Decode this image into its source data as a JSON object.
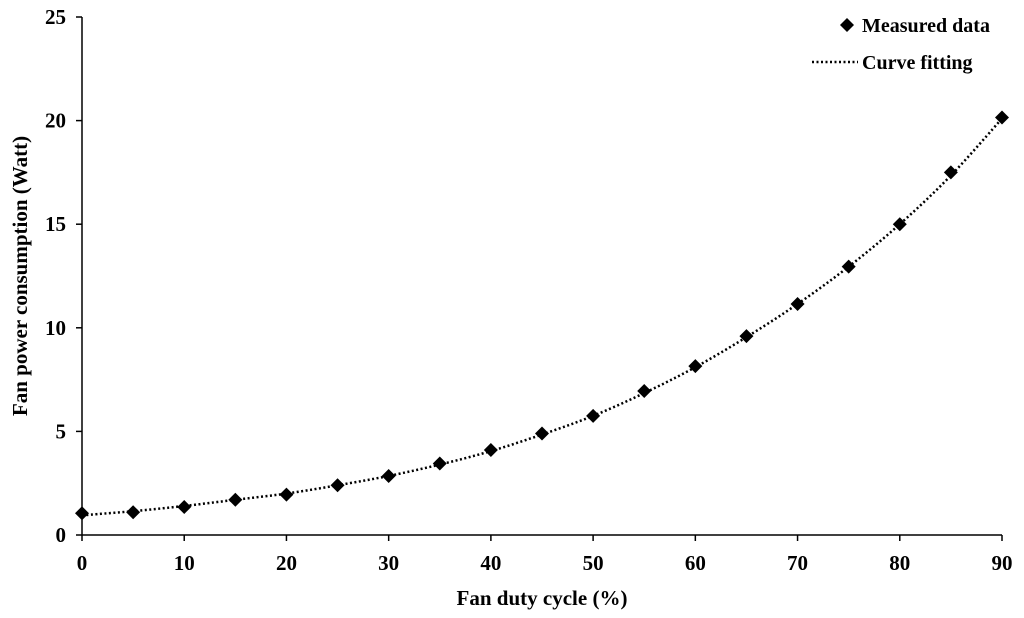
{
  "chart_data": {
    "type": "scatter",
    "xlabel": "Fan duty cycle (%)",
    "ylabel": "Fan power consumption (Watt)",
    "xlim": [
      0,
      90
    ],
    "ylim": [
      0,
      25
    ],
    "xticks": [
      0,
      10,
      20,
      30,
      40,
      50,
      60,
      70,
      80,
      90
    ],
    "yticks": [
      0,
      5,
      10,
      15,
      20,
      25
    ],
    "grid": false,
    "legend_position": "top-right",
    "series": [
      {
        "name": "Measured data",
        "kind": "markers",
        "marker": "diamond",
        "x": [
          0,
          5,
          10,
          15,
          20,
          25,
          30,
          35,
          40,
          45,
          50,
          55,
          60,
          65,
          70,
          75,
          80,
          85,
          90
        ],
        "y": [
          1.05,
          1.1,
          1.35,
          1.7,
          1.95,
          2.4,
          2.85,
          3.45,
          4.1,
          4.9,
          5.75,
          6.95,
          8.15,
          9.6,
          11.15,
          12.95,
          15.0,
          17.5,
          20.15
        ]
      },
      {
        "name": "Curve fitting",
        "kind": "dotted-line",
        "x": [
          0,
          5,
          10,
          15,
          20,
          25,
          30,
          35,
          40,
          45,
          50,
          55,
          60,
          65,
          70,
          75,
          80,
          85,
          90
        ],
        "y": [
          0.95,
          1.15,
          1.4,
          1.7,
          2.0,
          2.4,
          2.85,
          3.4,
          4.05,
          4.85,
          5.75,
          6.85,
          8.1,
          9.55,
          11.15,
          12.95,
          15.0,
          17.35,
          20.1
        ]
      }
    ],
    "colors": {
      "markers": "#000000",
      "line": "#000000"
    }
  }
}
